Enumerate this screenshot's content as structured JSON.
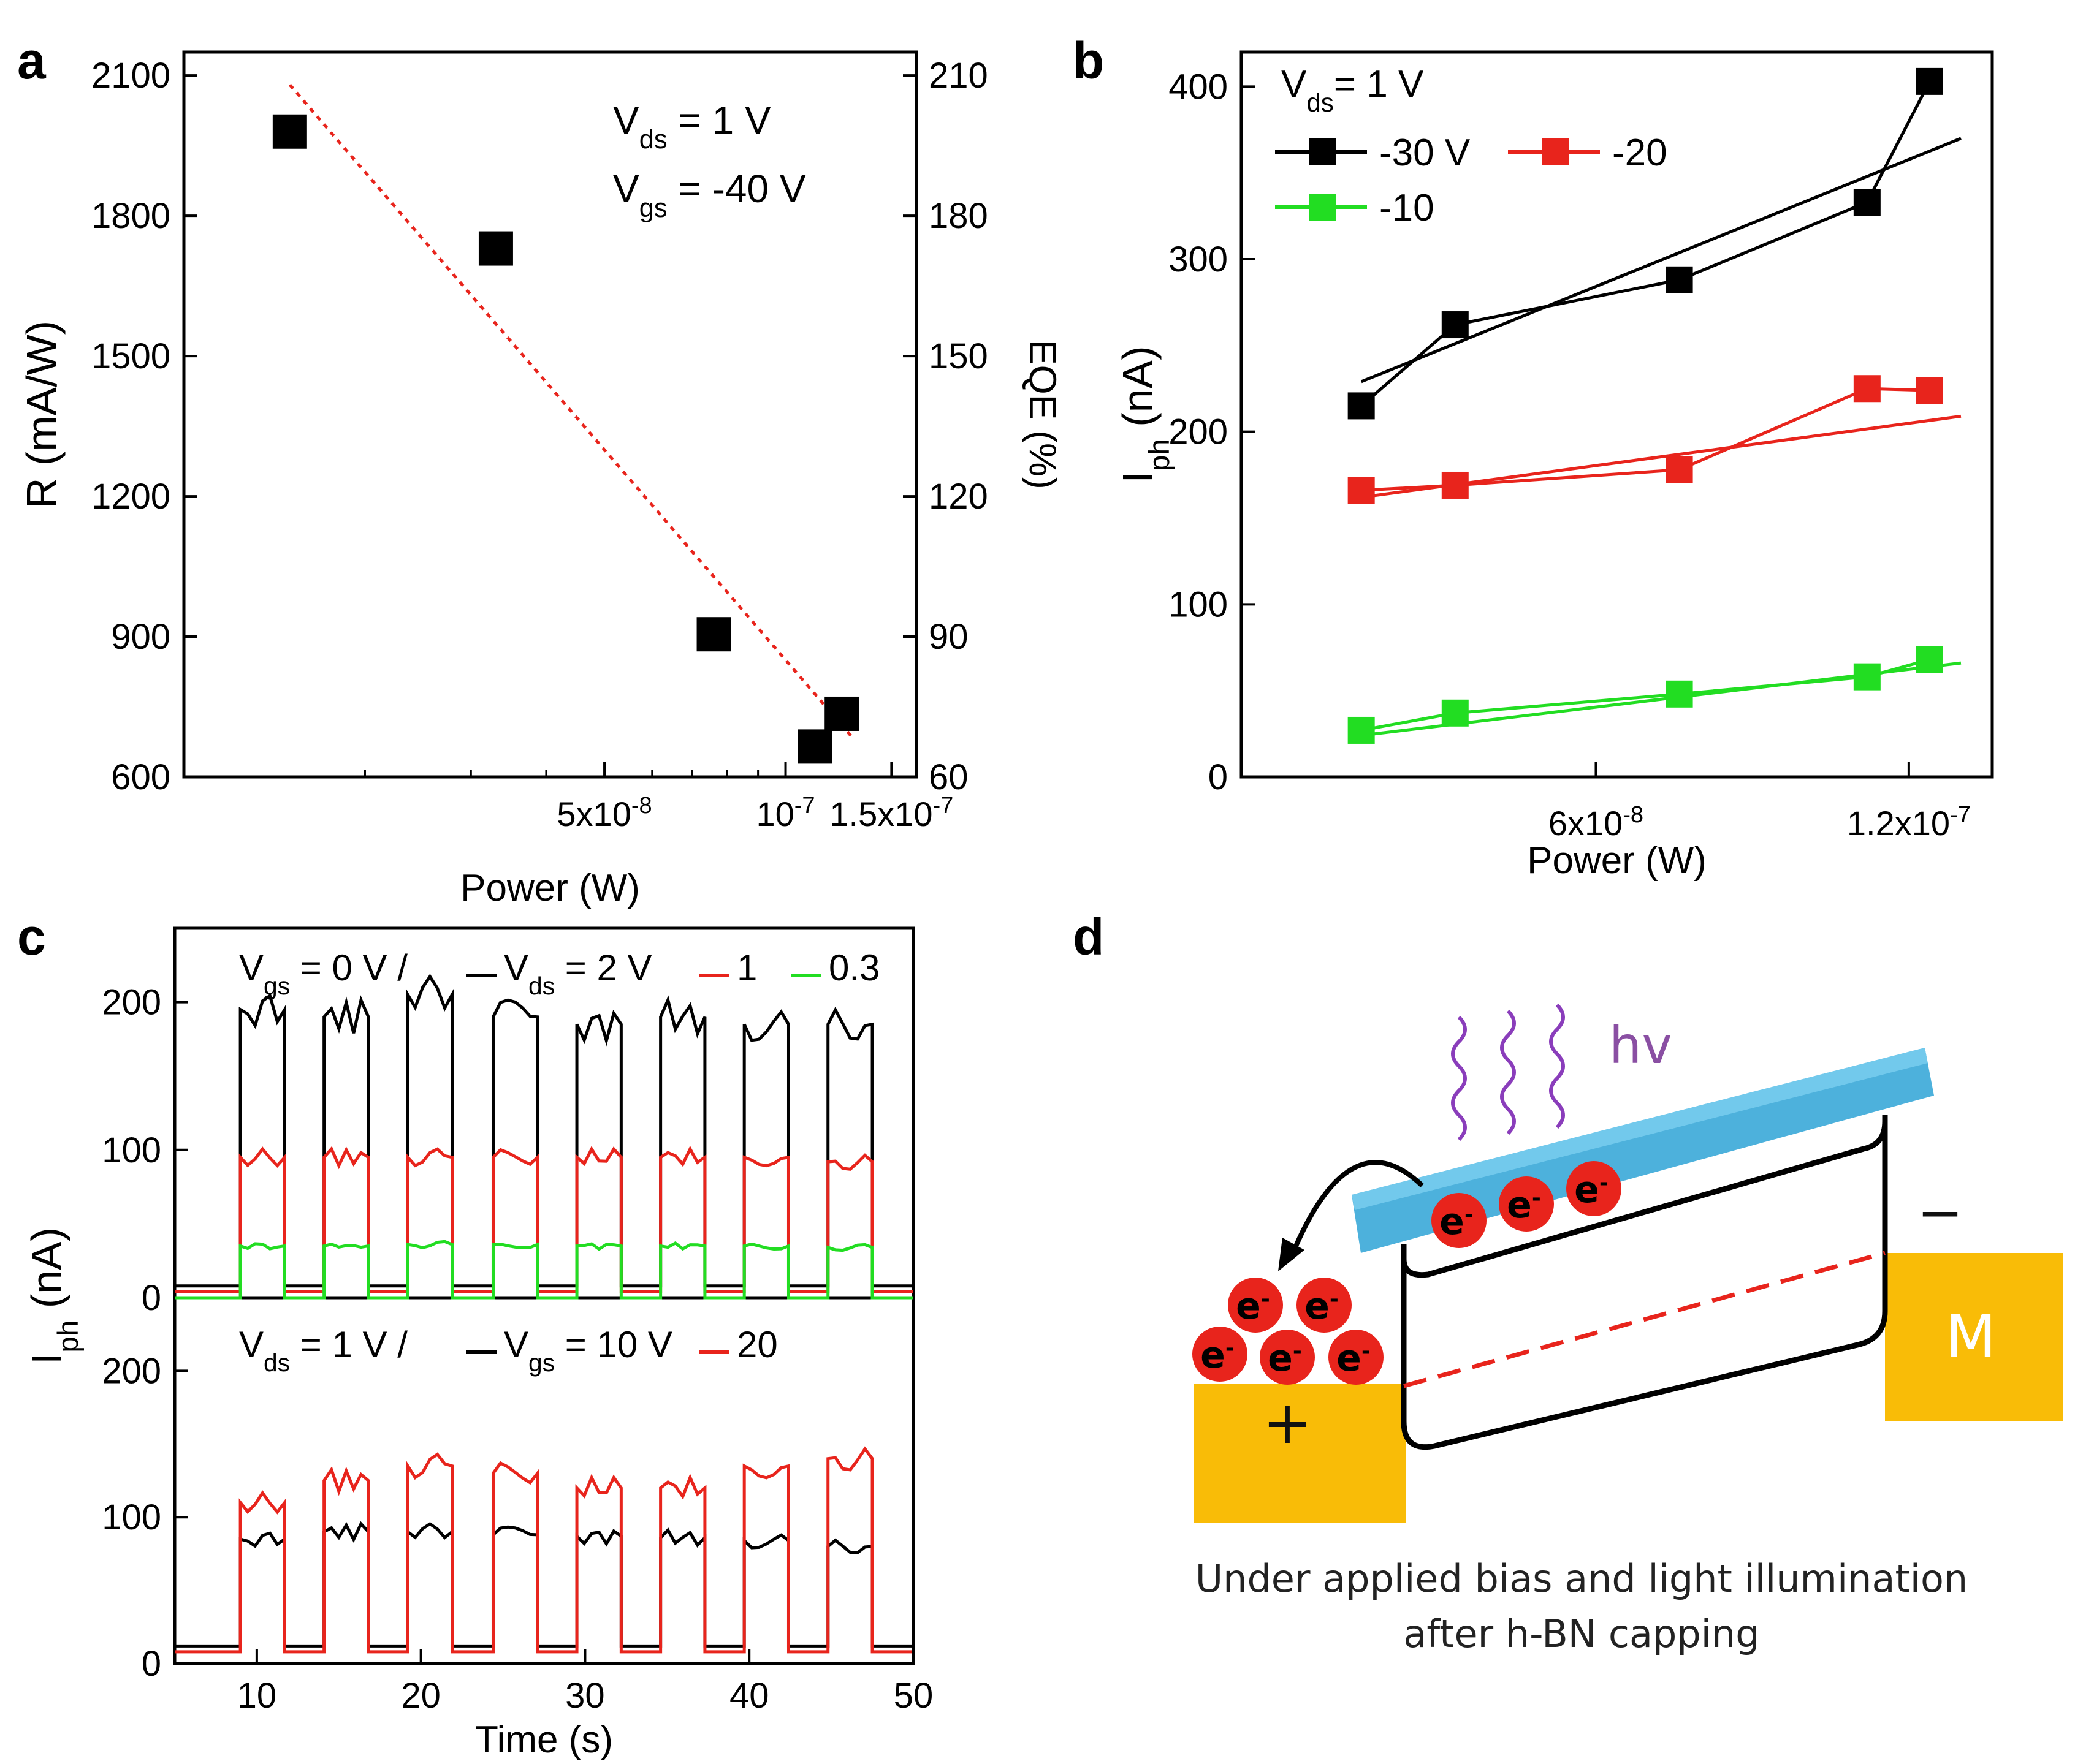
{
  "figure": {
    "panel_labels": [
      "a",
      "b",
      "c",
      "d"
    ],
    "diagram": {
      "photon_label": "hv",
      "electron_label": "e",
      "electron_superscript": "-",
      "contact_label": "M",
      "plus_sign": "+",
      "minus_sign": "−",
      "caption_line1": "Under applied bias and light illumination",
      "caption_line2": "after h-BN capping"
    }
  },
  "chart_data": [
    {
      "panel": "a",
      "type": "scatter",
      "xlabel": "Power (W)",
      "ylabel": "R (mA/W)",
      "y2label": "EQE (%)",
      "xlim": [
        1e-08,
        1.65e-07
      ],
      "ylim": [
        600,
        2150
      ],
      "y2lim": [
        60,
        215
      ],
      "x_scale": "log",
      "x_ticks": [
        {
          "value": 5e-08,
          "base": "5x10",
          "exp": "-8"
        },
        {
          "value": 1e-07,
          "base": "10",
          "exp": "-7"
        },
        {
          "value": 1.5e-07,
          "base": "1.5x10",
          "exp": "-7"
        }
      ],
      "y_ticks": [
        600,
        900,
        1200,
        1500,
        1800,
        2100
      ],
      "y2_ticks": [
        60,
        90,
        120,
        150,
        180,
        210
      ],
      "annotations": [
        {
          "main": "V",
          "sub": "ds",
          "rest": " = 1 V"
        },
        {
          "main": "V",
          "sub": "gs",
          "rest": " = -40 V"
        }
      ],
      "series": [
        {
          "name": "R",
          "color": "#000000",
          "x": [
            1.5e-08,
            3.3e-08,
            7.6e-08,
            1.12e-07,
            1.24e-07
          ],
          "y": [
            1980,
            1730,
            905,
            665,
            735
          ]
        },
        {
          "name": "fit",
          "color": "#e8241c",
          "style": "dotted",
          "x": [
            1.5e-08,
            1.3e-07
          ],
          "y": [
            2080,
            680
          ]
        }
      ]
    },
    {
      "panel": "b",
      "type": "line",
      "xlabel": "Power (W)",
      "ylabel_main": "I",
      "ylabel_sub": "ph",
      "ylabel_rest": " (nA)",
      "xlim": [
        -8e-09,
        1.36e-07
      ],
      "ylim": [
        0,
        420
      ],
      "x_ticks": [
        {
          "value": 6e-08,
          "base": "6x10",
          "exp": "-8"
        },
        {
          "value": 1.2e-07,
          "base": "1.2x10",
          "exp": "-7"
        }
      ],
      "y_ticks": [
        0,
        100,
        200,
        300,
        400
      ],
      "annotation": {
        "main": "V",
        "sub": "ds",
        "rest": "= 1 V"
      },
      "x": [
        1.5e-08,
        3.3e-08,
        7.6e-08,
        1.12e-07,
        1.24e-07
      ],
      "series": [
        {
          "name": "-30 V",
          "color": "#000000",
          "values": [
            215,
            262,
            288,
            333,
            403
          ],
          "fit": [
            229,
            370
          ]
        },
        {
          "name": "-20",
          "color": "#e8241c",
          "values": [
            166,
            169,
            178,
            225,
            224
          ],
          "fit": [
            162,
            209
          ]
        },
        {
          "name": "-10",
          "color": "#22dd22",
          "values": [
            27,
            37,
            48,
            58,
            68
          ],
          "fit": [
            24,
            66
          ]
        }
      ]
    },
    {
      "panel": "c",
      "type": "line",
      "xlabel": "Time (s)",
      "ylabel_main": "I",
      "ylabel_sub": "ph",
      "ylabel_rest": " (nA)",
      "xlim": [
        5,
        50
      ],
      "ylim": [
        0,
        250
      ],
      "x_ticks": [
        10,
        20,
        30,
        40,
        50
      ],
      "y_ticks": [
        0,
        100,
        200
      ],
      "pulse_on_times": [
        9.0,
        14.1,
        19.2,
        24.4,
        29.5,
        34.6,
        39.7,
        44.8
      ],
      "pulse_width": 2.7,
      "top": {
        "legend_prefix": {
          "main": "V",
          "sub": "gs",
          "rest": " = 0 V / "
        },
        "legend_mid": {
          "main": "V",
          "sub": "ds",
          "rest": " = 2 V"
        },
        "series": [
          {
            "name": "2 V",
            "color": "#000000",
            "on_values": [
              195,
              190,
              205,
              190,
              185,
              190,
              185,
              185
            ],
            "off_value": 8
          },
          {
            "name": "1",
            "color": "#e8241c",
            "on_values": [
              95,
              95,
              95,
              95,
              95,
              95,
              95,
              92
            ],
            "off_value": 4
          },
          {
            "name": "0.3",
            "color": "#22dd22",
            "on_values": [
              35,
              35,
              36,
              36,
              35,
              35,
              35,
              34
            ],
            "off_value": 0
          }
        ]
      },
      "bottom": {
        "legend_prefix": {
          "main": "V",
          "sub": "ds",
          "rest": " = 1 V / "
        },
        "legend_mid": {
          "main": "V",
          "sub": "gs",
          "rest": " = 10 V"
        },
        "series": [
          {
            "name": "10 V",
            "color": "#000000",
            "on_values": [
              85,
              90,
              90,
              88,
              87,
              86,
              84,
              80
            ],
            "off_value": 12
          },
          {
            "name": "20",
            "color": "#e8241c",
            "on_values": [
              110,
              125,
              135,
              130,
              120,
              120,
              135,
              140
            ],
            "off_value": 8
          }
        ]
      }
    }
  ]
}
